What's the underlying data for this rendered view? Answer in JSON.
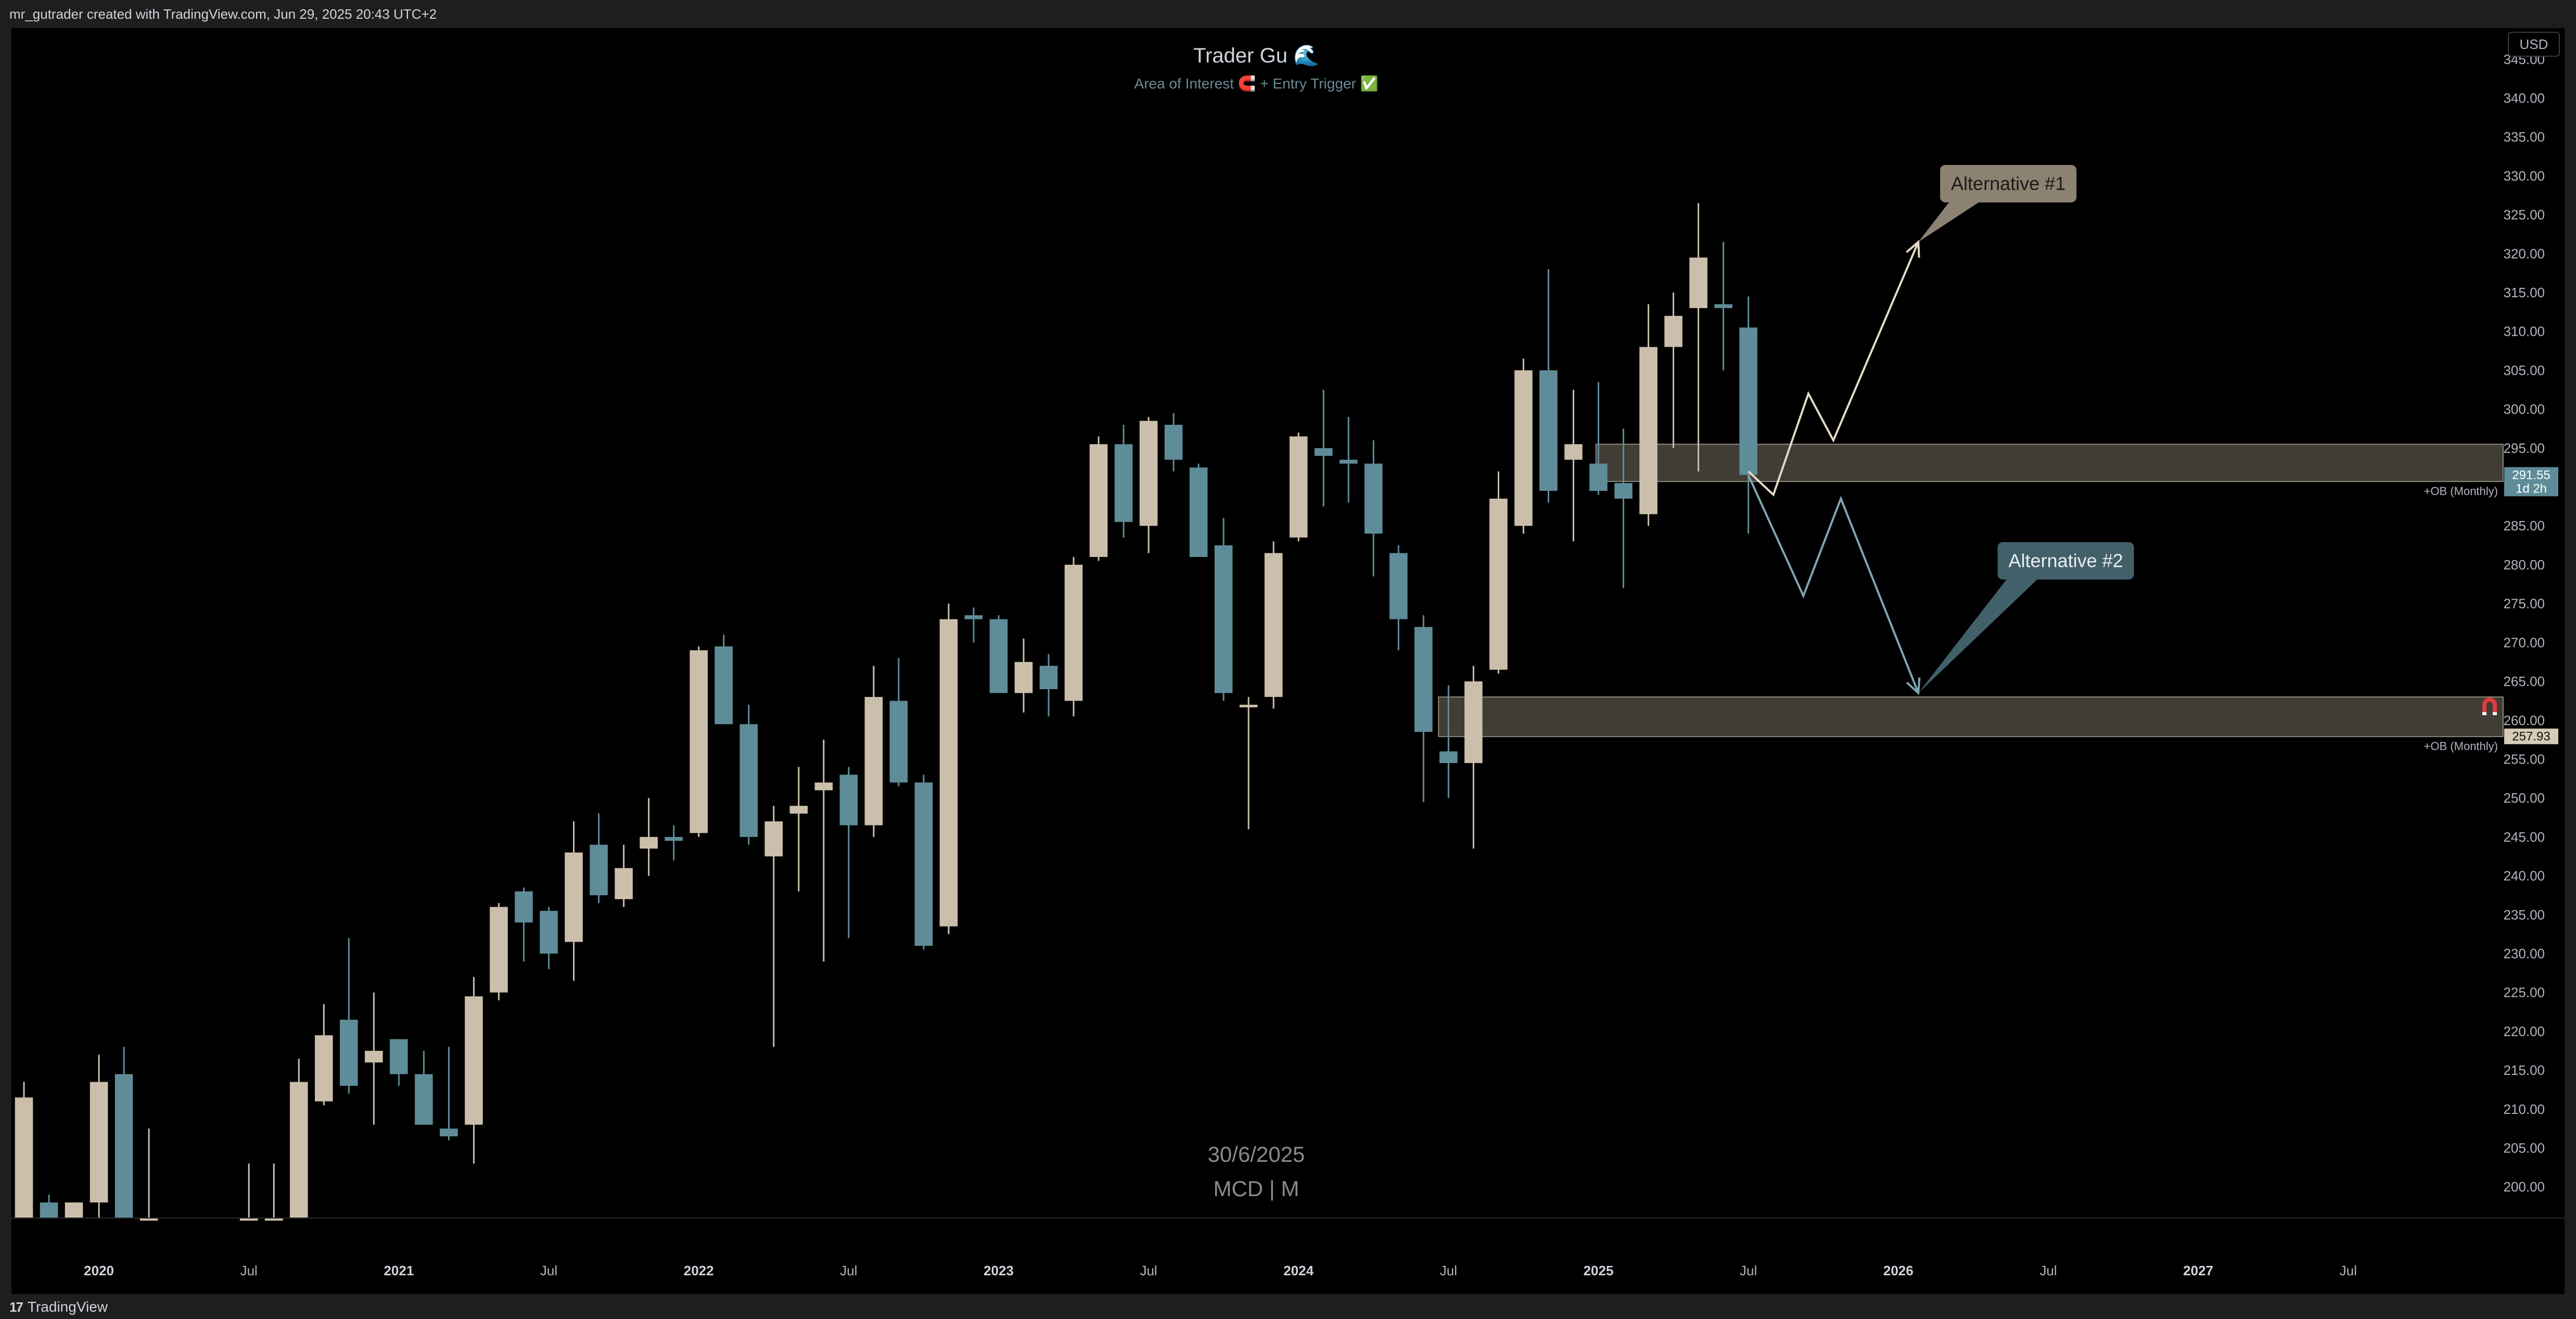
{
  "header": {
    "caption": "mr_gutrader created with TradingView.com, Jun 29, 2025 20:43 UTC+2"
  },
  "footer": {
    "brand": "TradingView",
    "brand_mark": "17"
  },
  "colors": {
    "bull": "#cbbfac",
    "bear": "#5f8c99",
    "zone_fill": "#4b463f",
    "zone_stroke": "#d6cbb6",
    "path1": "#e4dac8",
    "path2": "#7fa7b2",
    "callout1": "#8c8271",
    "callout2": "#42606a"
  },
  "chart_data": {
    "type": "candlestick",
    "title": "Trader Gu 🌊",
    "subtitle": "Area of Interest 🧲 + Entry Trigger ✅",
    "currency": "USD",
    "symbol_label": "MCD | M",
    "date_label": "30/6/2025",
    "ylim": [
      196,
      349
    ],
    "y_ticks": [
      "345.00",
      "340.00",
      "335.00",
      "330.00",
      "325.00",
      "320.00",
      "315.00",
      "310.00",
      "305.00",
      "300.00",
      "295.00",
      "290.00",
      "285.00",
      "280.00",
      "275.00",
      "270.00",
      "265.00",
      "260.00",
      "255.00",
      "250.00",
      "245.00",
      "240.00",
      "235.00",
      "230.00",
      "225.00",
      "220.00",
      "215.00",
      "210.00",
      "205.00",
      "200.00"
    ],
    "x_ticks": [
      {
        "label": "2020",
        "month": 0,
        "bold": true
      },
      {
        "label": "Jul",
        "month": 6,
        "bold": false
      },
      {
        "label": "2021",
        "month": 12,
        "bold": true
      },
      {
        "label": "Jul",
        "month": 18,
        "bold": false
      },
      {
        "label": "2022",
        "month": 24,
        "bold": true
      },
      {
        "label": "Jul",
        "month": 30,
        "bold": false
      },
      {
        "label": "2023",
        "month": 36,
        "bold": true
      },
      {
        "label": "Jul",
        "month": 42,
        "bold": false
      },
      {
        "label": "2024",
        "month": 48,
        "bold": true
      },
      {
        "label": "Jul",
        "month": 54,
        "bold": false
      },
      {
        "label": "2025",
        "month": 60,
        "bold": true
      },
      {
        "label": "Jul",
        "month": 66,
        "bold": false
      },
      {
        "label": "2026",
        "month": 72,
        "bold": true
      },
      {
        "label": "Jul",
        "month": 78,
        "bold": false
      },
      {
        "label": "2027",
        "month": 84,
        "bold": true
      },
      {
        "label": "Jul",
        "month": 90,
        "bold": false
      }
    ],
    "x_start_month": -3.5,
    "x_end_month": 96.2,
    "candles": [
      {
        "m": -3,
        "o": 196.0,
        "h": 213.5,
        "l": 196.0,
        "c": 211.5
      },
      {
        "m": -2,
        "o": 198.0,
        "h": 199.0,
        "l": 196.0,
        "c": 196.0
      },
      {
        "m": -1,
        "o": 196.0,
        "h": 198.0,
        "l": 196.0,
        "c": 198.0
      },
      {
        "m": 0,
        "o": 198.0,
        "h": 217.0,
        "l": 196.0,
        "c": 213.5
      },
      {
        "m": 1,
        "o": 214.5,
        "h": 218.0,
        "l": 196.0,
        "c": 196.0
      },
      {
        "m": 2,
        "o": 196.0,
        "h": 207.5,
        "l": 196.0,
        "c": 196.0
      },
      {
        "m": 6,
        "o": 196.0,
        "h": 203.0,
        "l": 196.0,
        "c": 196.0
      },
      {
        "m": 7,
        "o": 196.0,
        "h": 203.0,
        "l": 196.0,
        "c": 196.0
      },
      {
        "m": 8,
        "o": 196.0,
        "h": 216.5,
        "l": 196.0,
        "c": 213.5
      },
      {
        "m": 9,
        "o": 211.0,
        "h": 223.5,
        "l": 210.5,
        "c": 219.5
      },
      {
        "m": 10,
        "o": 221.5,
        "h": 232.0,
        "l": 212.0,
        "c": 213.0
      },
      {
        "m": 11,
        "o": 216.0,
        "h": 225.0,
        "l": 208.0,
        "c": 217.5
      },
      {
        "m": 12,
        "o": 219.0,
        "h": 219.0,
        "l": 213.0,
        "c": 214.5
      },
      {
        "m": 13,
        "o": 214.5,
        "h": 217.5,
        "l": 208.0,
        "c": 208.0
      },
      {
        "m": 14,
        "o": 207.5,
        "h": 218.0,
        "l": 206.0,
        "c": 206.5
      },
      {
        "m": 15,
        "o": 208.0,
        "h": 227.0,
        "l": 203.0,
        "c": 224.5
      },
      {
        "m": 16,
        "o": 225.0,
        "h": 236.5,
        "l": 224.0,
        "c": 236.0
      },
      {
        "m": 17,
        "o": 238.0,
        "h": 238.5,
        "l": 229.0,
        "c": 234.0
      },
      {
        "m": 18,
        "o": 235.5,
        "h": 236.0,
        "l": 228.0,
        "c": 230.0
      },
      {
        "m": 19,
        "o": 231.5,
        "h": 247.0,
        "l": 226.5,
        "c": 243.0
      },
      {
        "m": 20,
        "o": 244.0,
        "h": 248.0,
        "l": 236.5,
        "c": 237.5
      },
      {
        "m": 21,
        "o": 237.0,
        "h": 244.0,
        "l": 236.0,
        "c": 241.0
      },
      {
        "m": 22,
        "o": 243.5,
        "h": 250.0,
        "l": 240.0,
        "c": 245.0
      },
      {
        "m": 23,
        "o": 245.0,
        "h": 246.5,
        "l": 242.0,
        "c": 244.5
      },
      {
        "m": 24,
        "o": 245.5,
        "h": 269.5,
        "l": 245.0,
        "c": 269.0
      },
      {
        "m": 25,
        "o": 269.5,
        "h": 271.0,
        "l": 259.5,
        "c": 259.5
      },
      {
        "m": 26,
        "o": 259.5,
        "h": 262.0,
        "l": 244.0,
        "c": 245.0
      },
      {
        "m": 27,
        "o": 242.5,
        "h": 249.0,
        "l": 218.0,
        "c": 247.0
      },
      {
        "m": 28,
        "o": 248.0,
        "h": 254.0,
        "l": 238.0,
        "c": 249.0
      },
      {
        "m": 29,
        "o": 251.0,
        "h": 257.5,
        "l": 229.0,
        "c": 252.0
      },
      {
        "m": 30,
        "o": 253.0,
        "h": 254.0,
        "l": 232.0,
        "c": 246.5
      },
      {
        "m": 31,
        "o": 246.5,
        "h": 267.0,
        "l": 245.0,
        "c": 263.0
      },
      {
        "m": 32,
        "o": 262.5,
        "h": 268.0,
        "l": 251.5,
        "c": 252.0
      },
      {
        "m": 33,
        "o": 252.0,
        "h": 253.0,
        "l": 230.5,
        "c": 231.0
      },
      {
        "m": 34,
        "o": 233.5,
        "h": 275.0,
        "l": 232.5,
        "c": 273.0
      },
      {
        "m": 35,
        "o": 273.5,
        "h": 274.5,
        "l": 270.0,
        "c": 273.0
      },
      {
        "m": 36,
        "o": 273.0,
        "h": 273.5,
        "l": 263.5,
        "c": 263.5
      },
      {
        "m": 37,
        "o": 263.5,
        "h": 270.5,
        "l": 261.0,
        "c": 267.5
      },
      {
        "m": 38,
        "o": 267.0,
        "h": 268.5,
        "l": 260.5,
        "c": 264.0
      },
      {
        "m": 39,
        "o": 262.5,
        "h": 281.0,
        "l": 260.5,
        "c": 280.0
      },
      {
        "m": 40,
        "o": 281.0,
        "h": 296.5,
        "l": 280.5,
        "c": 295.5
      },
      {
        "m": 41,
        "o": 295.5,
        "h": 298.0,
        "l": 283.5,
        "c": 285.5
      },
      {
        "m": 42,
        "o": 285.0,
        "h": 299.0,
        "l": 281.5,
        "c": 298.5
      },
      {
        "m": 43,
        "o": 298.0,
        "h": 299.5,
        "l": 292.0,
        "c": 293.5
      },
      {
        "m": 44,
        "o": 292.5,
        "h": 293.0,
        "l": 281.5,
        "c": 281.0
      },
      {
        "m": 45,
        "o": 282.5,
        "h": 286.0,
        "l": 262.5,
        "c": 263.5
      },
      {
        "m": 46,
        "o": 262.0,
        "h": 263.0,
        "l": 246.0,
        "c": 262.0
      },
      {
        "m": 47,
        "o": 263.0,
        "h": 283.0,
        "l": 261.5,
        "c": 281.5
      },
      {
        "m": 48,
        "o": 283.5,
        "h": 297.0,
        "l": 283.0,
        "c": 296.5
      },
      {
        "m": 49,
        "o": 295.0,
        "h": 302.5,
        "l": 287.5,
        "c": 294.0
      },
      {
        "m": 50,
        "o": 293.5,
        "h": 299.0,
        "l": 288.0,
        "c": 293.0
      },
      {
        "m": 51,
        "o": 293.0,
        "h": 296.0,
        "l": 278.5,
        "c": 284.0
      },
      {
        "m": 52,
        "o": 281.5,
        "h": 282.5,
        "l": 269.0,
        "c": 273.0
      },
      {
        "m": 53,
        "o": 272.0,
        "h": 273.5,
        "l": 249.5,
        "c": 258.5
      },
      {
        "m": 54,
        "o": 256.0,
        "h": 264.5,
        "l": 250.0,
        "c": 254.5
      },
      {
        "m": 55,
        "o": 254.5,
        "h": 267.0,
        "l": 243.5,
        "c": 265.0
      },
      {
        "m": 56,
        "o": 266.5,
        "h": 292.0,
        "l": 266.0,
        "c": 288.5
      },
      {
        "m": 57,
        "o": 285.0,
        "h": 306.5,
        "l": 284.0,
        "c": 305.0
      },
      {
        "m": 58,
        "o": 305.0,
        "h": 318.0,
        "l": 288.0,
        "c": 289.5
      },
      {
        "m": 59,
        "o": 293.5,
        "h": 302.5,
        "l": 283.0,
        "c": 295.5
      },
      {
        "m": 60,
        "o": 293.0,
        "h": 303.5,
        "l": 289.0,
        "c": 289.5
      },
      {
        "m": 61,
        "o": 290.5,
        "h": 297.5,
        "l": 277.0,
        "c": 288.5
      },
      {
        "m": 62,
        "o": 286.5,
        "h": 313.5,
        "l": 285.0,
        "c": 308.0
      },
      {
        "m": 63,
        "o": 308.0,
        "h": 315.0,
        "l": 295.0,
        "c": 312.0
      },
      {
        "m": 64,
        "o": 313.0,
        "h": 326.5,
        "l": 292.0,
        "c": 319.5
      },
      {
        "m": 65,
        "o": 313.5,
        "h": 321.5,
        "l": 305.0,
        "c": 313.0
      },
      {
        "m": 66,
        "o": 310.5,
        "h": 314.5,
        "l": 284.0,
        "c": 291.55
      }
    ],
    "zones": [
      {
        "label": "+OB (Monthly)",
        "top": 295.5,
        "bottom": 290.7,
        "start_month": 59.9,
        "price_tag": "291.55",
        "price_tag_sub": "1d 2h",
        "tag_color": "#5f8c99"
      },
      {
        "label": "+OB (Monthly)",
        "top": 263.0,
        "bottom": 257.9,
        "start_month": 53.6,
        "price_tag": "257.93",
        "price_tag_sub": "",
        "tag_color": "#d6cbb6"
      }
    ],
    "projections": [
      {
        "name": "Alternative #1",
        "points": [
          [
            66,
            292
          ],
          [
            67,
            289
          ],
          [
            68.4,
            302
          ],
          [
            69.4,
            296
          ],
          [
            72.8,
            321.5
          ]
        ],
        "callout_anchor": [
          72.8,
          321.5
        ],
        "callout_at": [
          76.4,
          329
        ]
      },
      {
        "name": "Alternative #2",
        "points": [
          [
            66,
            291.5
          ],
          [
            68.2,
            276
          ],
          [
            69.7,
            288.5
          ],
          [
            72.8,
            263.5
          ]
        ],
        "callout_anchor": [
          72.8,
          263.5
        ],
        "callout_at": [
          78.7,
          280.5
        ]
      }
    ]
  }
}
